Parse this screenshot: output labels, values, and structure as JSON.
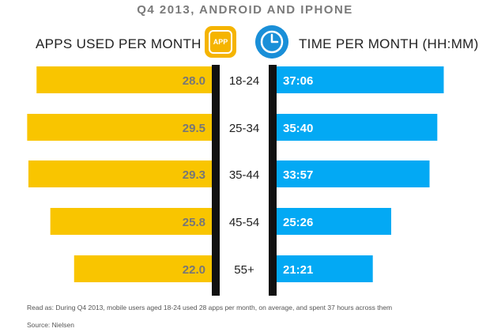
{
  "title": "Q4 2013, ANDROID AND IPHONE",
  "left_header": "APPS USED PER MONTH",
  "right_header": "TIME PER MONTH (HH:MM)",
  "app_icon_label": "APP",
  "icons": {
    "left": "app-icon",
    "right": "clock-icon"
  },
  "colors": {
    "apps": "#f9c500",
    "time": "#03a9f4",
    "divider": "#111111",
    "title": "#7a7a7a"
  },
  "chart_data": {
    "type": "bar",
    "title": "Q4 2013, ANDROID AND IPHONE",
    "categories": [
      "18-24",
      "25-34",
      "35-44",
      "45-54",
      "55+"
    ],
    "series": [
      {
        "name": "APPS USED PER MONTH",
        "values": [
          28.0,
          29.5,
          29.3,
          25.8,
          22.0
        ],
        "labels": [
          "28.0",
          "29.5",
          "29.3",
          "25.8",
          "22.0"
        ]
      },
      {
        "name": "TIME PER MONTH (HH:MM)",
        "values": [
          37.1,
          35.67,
          33.95,
          25.43,
          21.35
        ],
        "labels": [
          "37:06",
          "35:40",
          "33:57",
          "25:26",
          "21:21"
        ]
      }
    ],
    "xlabel": "",
    "ylabel": ""
  },
  "note": "Read as: During Q4 2013, mobile users aged 18-24 used 28 apps per month, on average, and spent 37 hours across them",
  "source": "Source: Nielsen"
}
